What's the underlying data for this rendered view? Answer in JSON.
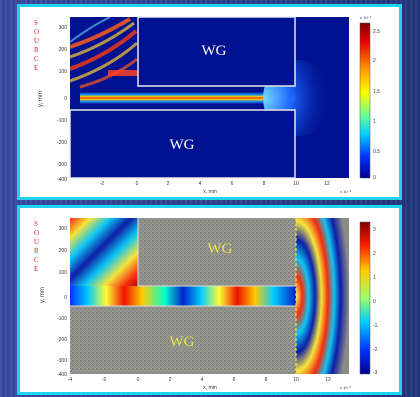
{
  "top_panel": {
    "source_letters": [
      "S",
      "O",
      "U",
      "R",
      "C",
      "E"
    ],
    "ylabel": "y, mm",
    "xlabel": "x, mm",
    "wg_upper": "WG",
    "wg_lower": "WG",
    "xticks": [
      "-2",
      "0",
      "2",
      "4",
      "6",
      "8",
      "10",
      "12"
    ],
    "yticks": [
      "300",
      "200",
      "100",
      "0",
      "-100",
      "-200",
      "-300",
      "-400"
    ],
    "x_exponent": "x 10⁻³",
    "colorbar_exponent": "x 10⁻³",
    "colorbar_ticks": [
      "2.5",
      "2",
      "1.5",
      "1",
      "0.5",
      "0"
    ],
    "colors": {
      "waveguide_bg": "#00128f",
      "colorbar_top": "#7f0000",
      "colorbar_bottom": "#00008f"
    }
  },
  "bottom_panel": {
    "source_letters": [
      "S",
      "O",
      "U",
      "R",
      "C",
      "E"
    ],
    "ylabel": "y, mm",
    "xlabel": "x, mm",
    "wg_upper": "WG",
    "wg_lower": "WG",
    "xticks": [
      "-4",
      "-2",
      "0",
      "2",
      "4",
      "6",
      "8",
      "10",
      "12"
    ],
    "yticks": [
      "300",
      "200",
      "100",
      "0",
      "-100",
      "-200",
      "-300",
      "-400"
    ],
    "x_exponent": "x 10⁻³",
    "colorbar_ticks": [
      "3",
      "2",
      "1",
      "0",
      "-1",
      "-2",
      "-3"
    ],
    "colors": {
      "wg_label": "#e6e64a",
      "noise_bg": "#8a8a86"
    }
  }
}
